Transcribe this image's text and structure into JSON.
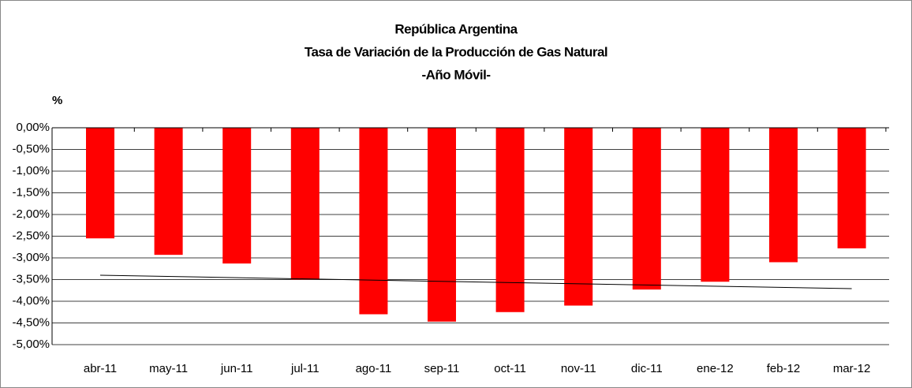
{
  "chart_data": {
    "type": "bar",
    "title": [
      "República Argentina",
      "Tasa de Variación de la Producción de Gas Natural",
      "-Año Móvil-"
    ],
    "ylabel": "%",
    "categories": [
      "abr-11",
      "may-11",
      "jun-11",
      "jul-11",
      "ago-11",
      "sep-11",
      "oct-11",
      "nov-11",
      "dic-11",
      "ene-12",
      "feb-12",
      "mar-12"
    ],
    "values": [
      -2.55,
      -2.93,
      -3.13,
      -3.5,
      -4.3,
      -4.47,
      -4.25,
      -4.1,
      -3.73,
      -3.55,
      -3.1,
      -2.78
    ],
    "color": "#ff0000",
    "trendline": [
      -3.4,
      -3.71
    ],
    "ylim": [
      -5,
      0
    ],
    "yticks": [
      {
        "value": 0,
        "label": "0,00%"
      },
      {
        "value": -0.5,
        "label": "-0,50%"
      },
      {
        "value": -1,
        "label": "-1,00%"
      },
      {
        "value": -1.5,
        "label": "-1,50%"
      },
      {
        "value": -2,
        "label": "-2,00%"
      },
      {
        "value": -2.5,
        "label": "-2,50%"
      },
      {
        "value": -3,
        "label": "-3,00%"
      },
      {
        "value": -3.5,
        "label": "-3,50%"
      },
      {
        "value": -4,
        "label": "-4,00%"
      },
      {
        "value": -4.5,
        "label": "-4,50%"
      },
      {
        "value": -5,
        "label": "-5,00%"
      }
    ],
    "grid": true
  }
}
